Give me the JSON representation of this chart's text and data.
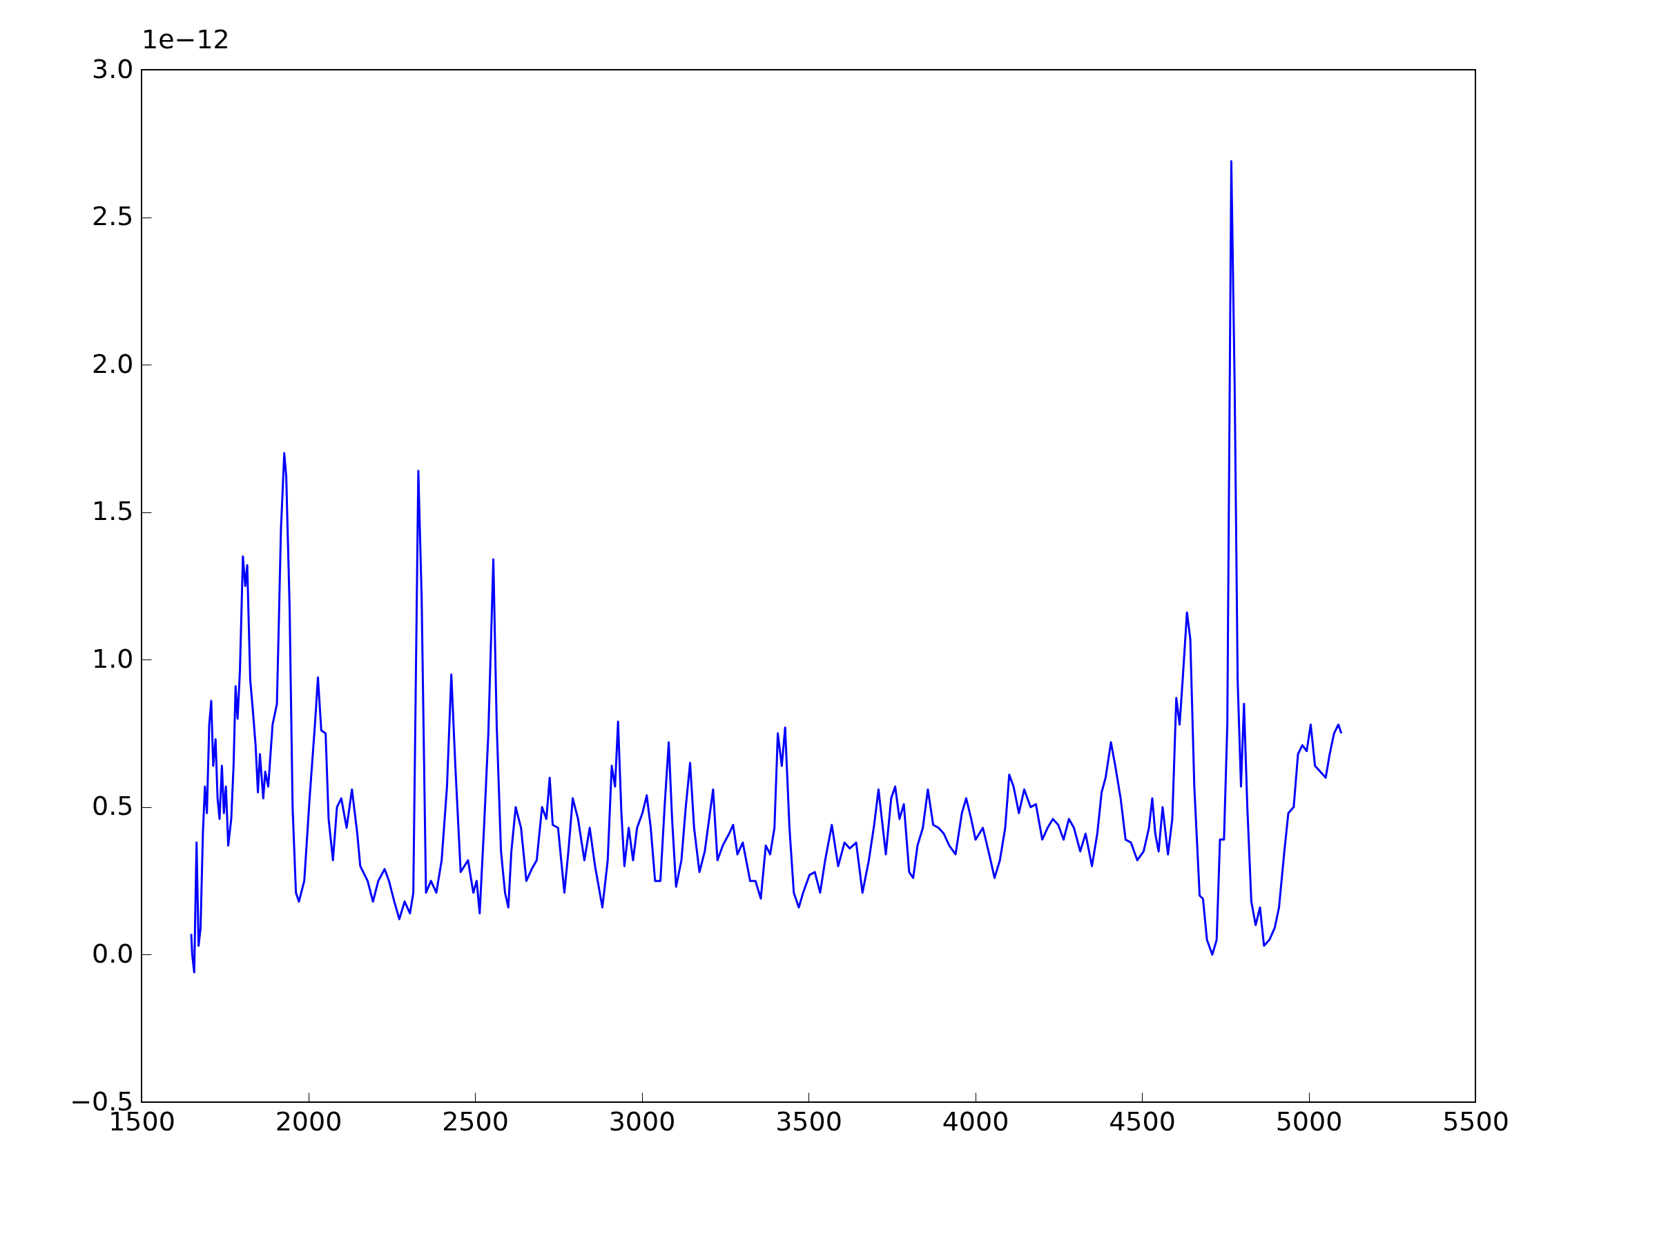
{
  "chart_data": {
    "type": "line",
    "annotations": [
      "1e−12"
    ],
    "xlim": [
      1500,
      5500
    ],
    "xticks": [
      1500,
      2000,
      2500,
      3000,
      3500,
      4000,
      4500,
      5000,
      5500
    ],
    "ylim": [
      -0.5,
      3.0
    ],
    "yticks": [
      {
        "value": -0.5,
        "label": "−0.5"
      },
      {
        "value": 0,
        "label": "0.0"
      },
      0.5,
      {
        "value": 1,
        "label": "1.0"
      },
      1.5,
      {
        "value": 2,
        "label": "2.0"
      },
      2.5,
      {
        "value": 3,
        "label": "3.0"
      }
    ],
    "grid": false,
    "series": [
      {
        "color": "#0000ff",
        "x": [
          1649,
          1652,
          1658,
          1665,
          1671,
          1677,
          1684,
          1690,
          1696,
          1703,
          1709,
          1715,
          1722,
          1728,
          1734,
          1741,
          1747,
          1753,
          1760,
          1769,
          1776,
          1782,
          1788,
          1795,
          1804,
          1811,
          1817,
          1826,
          1833,
          1842,
          1849,
          1855,
          1865,
          1871,
          1880,
          1893,
          1906,
          1912,
          1918,
          1928,
          1934,
          1944,
          1953,
          1963,
          1972,
          1988,
          2004,
          2020,
          2029,
          2039,
          2052,
          2061,
          2074,
          2086,
          2099,
          2115,
          2131,
          2147,
          2156,
          2178,
          2194,
          2210,
          2229,
          2242,
          2258,
          2273,
          2289,
          2305,
          2315,
          2330,
          2340,
          2353,
          2368,
          2384,
          2400,
          2416,
          2429,
          2441,
          2457,
          2479,
          2495,
          2505,
          2514,
          2527,
          2540,
          2555,
          2565,
          2578,
          2590,
          2600,
          2609,
          2622,
          2638,
          2654,
          2670,
          2685,
          2701,
          2714,
          2724,
          2733,
          2749,
          2768,
          2780,
          2793,
          2809,
          2828,
          2844,
          2860,
          2882,
          2898,
          2910,
          2920,
          2929,
          2939,
          2948,
          2961,
          2974,
          2986,
          3002,
          3015,
          3027,
          3040,
          3056,
          3069,
          3081,
          3091,
          3103,
          3119,
          3132,
          3145,
          3157,
          3173,
          3189,
          3202,
          3214,
          3227,
          3243,
          3262,
          3274,
          3287,
          3303,
          3325,
          3341,
          3357,
          3372,
          3385,
          3398,
          3408,
          3420,
          3430,
          3443,
          3456,
          3471,
          3484,
          3503,
          3519,
          3535,
          3550,
          3570,
          3589,
          3608,
          3624,
          3643,
          3662,
          3681,
          3697,
          3710,
          3732,
          3748,
          3760,
          3773,
          3786,
          3802,
          3814,
          3827,
          3843,
          3858,
          3874,
          3890,
          3906,
          3922,
          3941,
          3960,
          3973,
          3988,
          4001,
          4023,
          4042,
          4058,
          4074,
          4090,
          4102,
          4115,
          4131,
          4147,
          4166,
          4182,
          4201,
          4217,
          4233,
          4249,
          4265,
          4281,
          4296,
          4315,
          4331,
          4350,
          4366,
          4379,
          4391,
          4407,
          4420,
          4436,
          4451,
          4467,
          4486,
          4505,
          4521,
          4531,
          4540,
          4550,
          4562,
          4578,
          4591,
          4603,
          4613,
          4622,
          4635,
          4645,
          4657,
          4673,
          4683,
          4695,
          4711,
          4724,
          4734,
          4746,
          4756,
          4768,
          4778,
          4787,
          4797,
          4806,
          4816,
          4828,
          4841,
          4854,
          4866,
          4882,
          4898,
          4911,
          4927,
          4939,
          4955,
          4968,
          4981,
          4994,
          5006,
          5019,
          5035,
          5051,
          5063,
          5076,
          5089,
          5098
        ],
        "values": [
          0.07,
          0.0,
          -0.06,
          0.38,
          0.03,
          0.09,
          0.41,
          0.57,
          0.48,
          0.78,
          0.86,
          0.64,
          0.73,
          0.53,
          0.46,
          0.64,
          0.48,
          0.57,
          0.37,
          0.46,
          0.64,
          0.91,
          0.8,
          0.96,
          1.35,
          1.25,
          1.32,
          0.93,
          0.84,
          0.71,
          0.55,
          0.68,
          0.53,
          0.62,
          0.57,
          0.78,
          0.85,
          1.14,
          1.44,
          1.7,
          1.62,
          1.18,
          0.5,
          0.21,
          0.18,
          0.25,
          0.53,
          0.78,
          0.94,
          0.76,
          0.75,
          0.46,
          0.32,
          0.5,
          0.53,
          0.43,
          0.56,
          0.41,
          0.3,
          0.25,
          0.18,
          0.25,
          0.29,
          0.25,
          0.18,
          0.12,
          0.18,
          0.14,
          0.21,
          1.64,
          1.21,
          0.21,
          0.25,
          0.21,
          0.32,
          0.57,
          0.95,
          0.64,
          0.28,
          0.32,
          0.21,
          0.25,
          0.14,
          0.43,
          0.75,
          1.34,
          0.78,
          0.35,
          0.21,
          0.16,
          0.35,
          0.5,
          0.43,
          0.25,
          0.29,
          0.32,
          0.5,
          0.46,
          0.6,
          0.44,
          0.43,
          0.21,
          0.35,
          0.53,
          0.46,
          0.32,
          0.43,
          0.3,
          0.16,
          0.32,
          0.64,
          0.57,
          0.79,
          0.48,
          0.3,
          0.43,
          0.32,
          0.43,
          0.48,
          0.54,
          0.43,
          0.25,
          0.25,
          0.51,
          0.72,
          0.46,
          0.23,
          0.32,
          0.5,
          0.65,
          0.43,
          0.28,
          0.35,
          0.46,
          0.56,
          0.32,
          0.37,
          0.41,
          0.44,
          0.34,
          0.38,
          0.25,
          0.25,
          0.19,
          0.37,
          0.34,
          0.43,
          0.75,
          0.64,
          0.77,
          0.43,
          0.21,
          0.16,
          0.21,
          0.27,
          0.28,
          0.21,
          0.32,
          0.44,
          0.3,
          0.38,
          0.36,
          0.38,
          0.21,
          0.32,
          0.44,
          0.56,
          0.34,
          0.53,
          0.57,
          0.46,
          0.51,
          0.28,
          0.26,
          0.37,
          0.43,
          0.56,
          0.44,
          0.43,
          0.41,
          0.37,
          0.34,
          0.48,
          0.53,
          0.46,
          0.39,
          0.43,
          0.34,
          0.26,
          0.32,
          0.43,
          0.61,
          0.57,
          0.48,
          0.56,
          0.5,
          0.51,
          0.39,
          0.43,
          0.46,
          0.44,
          0.39,
          0.46,
          0.43,
          0.35,
          0.41,
          0.3,
          0.41,
          0.55,
          0.6,
          0.72,
          0.64,
          0.53,
          0.39,
          0.38,
          0.32,
          0.35,
          0.43,
          0.53,
          0.41,
          0.35,
          0.5,
          0.34,
          0.46,
          0.87,
          0.78,
          0.93,
          1.16,
          1.07,
          0.57,
          0.2,
          0.19,
          0.05,
          0.0,
          0.05,
          0.39,
          0.39,
          0.78,
          2.69,
          1.93,
          0.93,
          0.57,
          0.85,
          0.5,
          0.18,
          0.1,
          0.16,
          0.03,
          0.05,
          0.09,
          0.16,
          0.35,
          0.48,
          0.5,
          0.68,
          0.71,
          0.69,
          0.78,
          0.64,
          0.62,
          0.6,
          0.68,
          0.75,
          0.78,
          0.75
        ]
      }
    ]
  }
}
